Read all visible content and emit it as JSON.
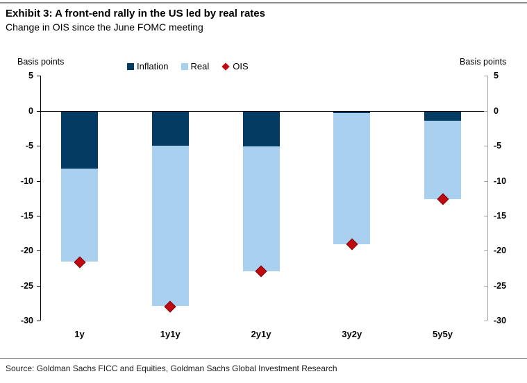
{
  "header": {
    "title": "Exhibit 3: A front-end rally in the US led by real rates",
    "subtitle": "Change in OIS since the June FOMC meeting"
  },
  "chart_data": {
    "type": "bar",
    "stacked": true,
    "title": "Exhibit 3: A front-end rally in the US led by real rates",
    "subtitle": "Change in OIS since the June FOMC meeting",
    "categories": [
      "1y",
      "1y1y",
      "2y1y",
      "3y2y",
      "5y5y"
    ],
    "series": [
      {
        "name": "Inflation",
        "color": "#043B63",
        "values": [
          -8.3,
          -5.0,
          -5.1,
          -0.3,
          -1.4
        ]
      },
      {
        "name": "Real",
        "color": "#A9D1EF",
        "values": [
          -13.2,
          -22.9,
          -17.8,
          -18.8,
          -11.2
        ]
      }
    ],
    "markers": {
      "name": "OIS",
      "shape": "diamond",
      "color": "#C00A12",
      "border_color": "#7E0308",
      "values": [
        -21.6,
        -28.0,
        -22.9,
        -19.1,
        -12.6
      ]
    },
    "ylabel_left": "Basis points",
    "ylabel_right": "Basis points",
    "ylim": [
      -30,
      5
    ],
    "yticks": [
      5,
      0,
      -5,
      -10,
      -15,
      -20,
      -25,
      -30
    ],
    "legend_position": "top",
    "grid": false,
    "colors": {
      "left_axis": "#000000",
      "right_axis": "#A6A6A6",
      "zero_line": "#000000",
      "rule": "#8C8C8C"
    }
  },
  "footer": {
    "source": "Source: Goldman Sachs FICC and Equities, Goldman Sachs Global Investment Research"
  }
}
